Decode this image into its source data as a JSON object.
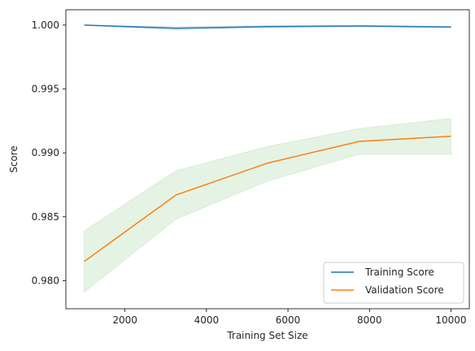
{
  "chart_data": {
    "type": "line",
    "title": "",
    "xlabel": "Training Set Size",
    "ylabel": "Score",
    "xlim": [
      550,
      10450
    ],
    "ylim": [
      0.9778,
      1.0012
    ],
    "xticks": [
      2000,
      4000,
      6000,
      8000,
      10000
    ],
    "xtick_labels": [
      "2000",
      "4000",
      "6000",
      "8000",
      "10000"
    ],
    "yticks": [
      0.98,
      0.985,
      0.99,
      0.995,
      1.0
    ],
    "ytick_labels": [
      "0.980",
      "0.985",
      "0.990",
      "0.995",
      "1.000"
    ],
    "x": [
      1000,
      3250,
      5500,
      7750,
      10000
    ],
    "series": [
      {
        "name": "Training Score",
        "color": "#1f77b4",
        "values": [
          1.0,
          0.99975,
          0.99988,
          0.99993,
          0.99985
        ],
        "band_lower": [
          1.0,
          0.99962,
          0.9998,
          0.99988,
          0.9998
        ],
        "band_upper": [
          1.0,
          0.99988,
          0.99996,
          0.99998,
          0.9999
        ],
        "band_color": "#1f77b4"
      },
      {
        "name": "Validation Score",
        "color": "#ff7f0e",
        "values": [
          0.9815,
          0.9867,
          0.9892,
          0.9909,
          0.9913
        ],
        "band_lower": [
          0.9791,
          0.9848,
          0.9878,
          0.9899,
          0.9899
        ],
        "band_upper": [
          0.9839,
          0.9886,
          0.9905,
          0.9919,
          0.9927
        ],
        "band_color": "#2ca02c"
      }
    ],
    "grid": false,
    "legend_position": "lower-right"
  }
}
